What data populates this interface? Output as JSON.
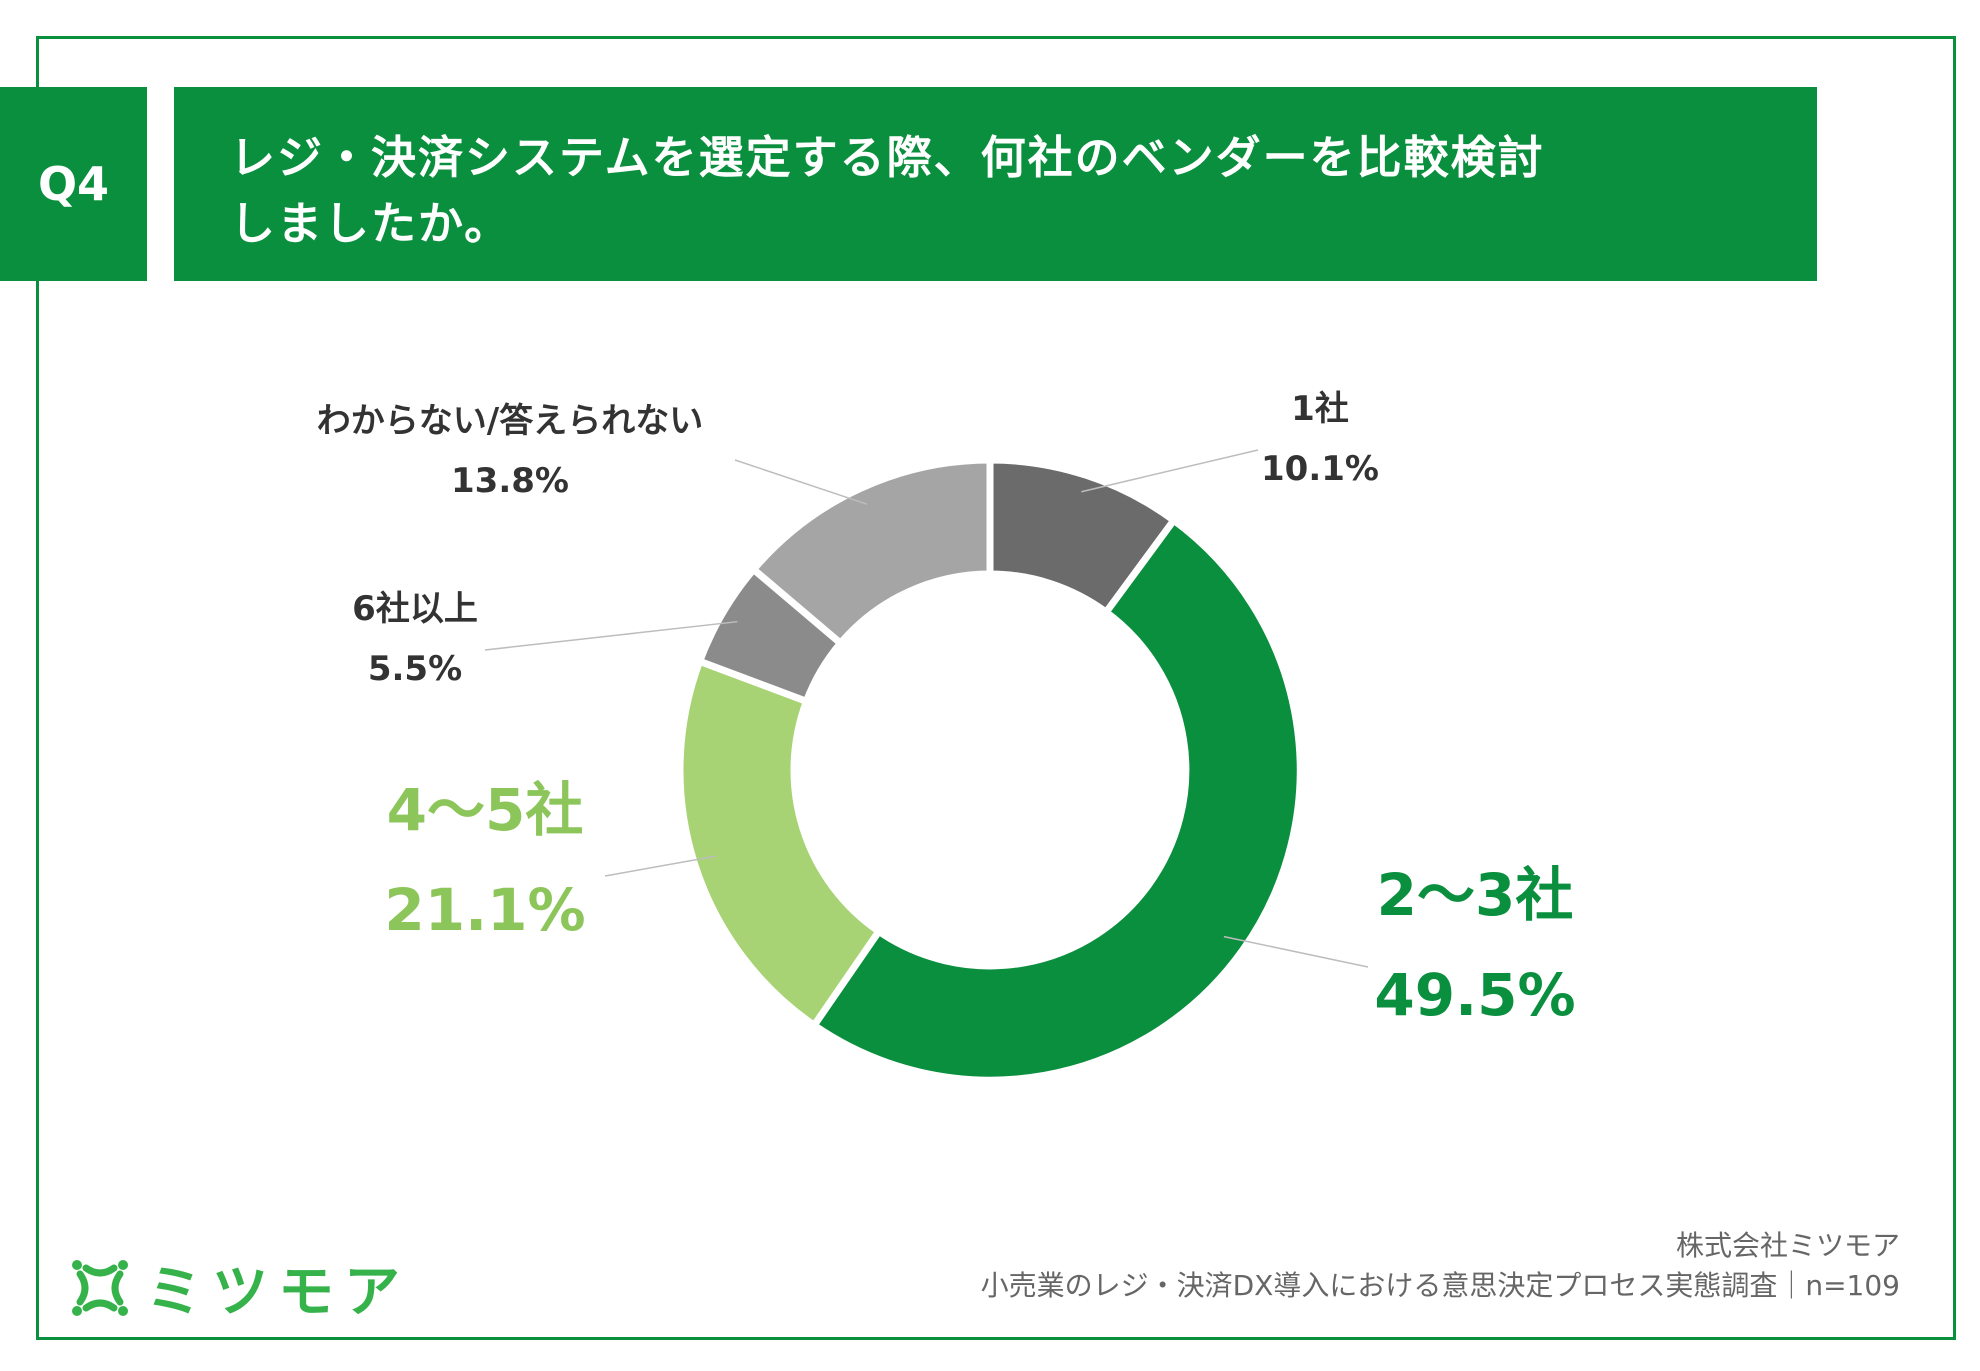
{
  "header": {
    "badge": "Q4",
    "title_line1": "レジ・決済システムを選定する際、何社のベンダーを比較検討",
    "title_line2": "しましたか。"
  },
  "chart_data": {
    "type": "pie",
    "categories": [
      "1社",
      "2〜3社",
      "4〜5社",
      "6社以上",
      "わからない/答えられない"
    ],
    "values": [
      10.1,
      49.5,
      21.1,
      5.5,
      13.8
    ],
    "value_labels": [
      "10.1%",
      "49.5%",
      "21.1%",
      "5.5%",
      "13.8%"
    ],
    "colors": [
      "#6b6b6b",
      "#0a8f3e",
      "#a8d375",
      "#8b8b8b",
      "#a5a5a5"
    ],
    "label_colors": [
      "#333333",
      "#0a8f3e",
      "#8cc55a",
      "#333333",
      "#333333"
    ],
    "donut": true,
    "start_angle": "top",
    "direction": "clockwise"
  },
  "footer": {
    "logo_text": "ミツモア",
    "company": "株式会社ミツモア",
    "survey": "小売業のレジ・決済DX導入における意思決定プロセス実態調査｜n=109"
  }
}
